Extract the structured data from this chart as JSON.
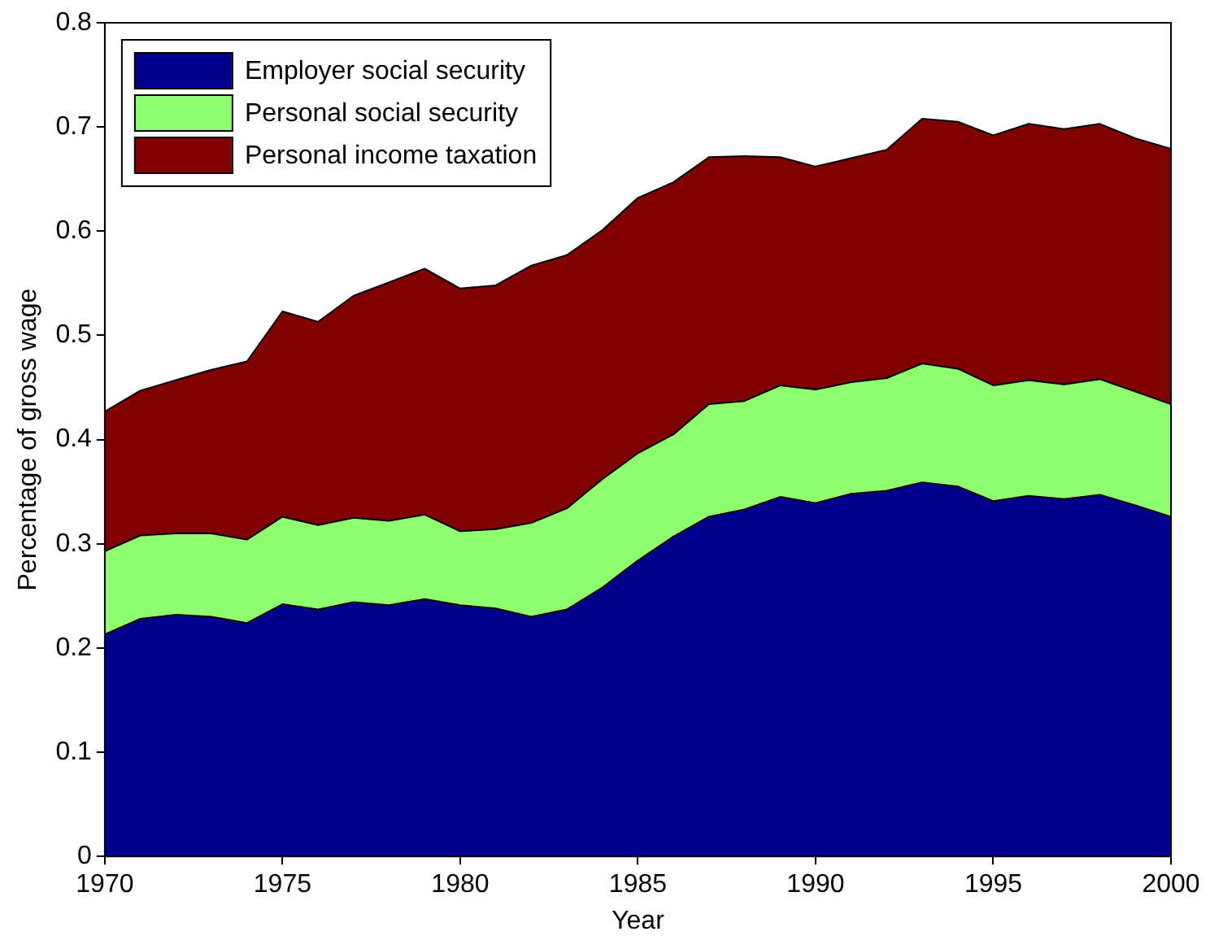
{
  "chart_data": {
    "type": "area",
    "stacked": true,
    "xlabel": "Year",
    "ylabel": "Percentage of gross wage",
    "x": [
      1970,
      1971,
      1972,
      1973,
      1974,
      1975,
      1976,
      1977,
      1978,
      1979,
      1980,
      1981,
      1982,
      1983,
      1984,
      1985,
      1986,
      1987,
      1988,
      1989,
      1990,
      1991,
      1992,
      1993,
      1994,
      1995,
      1996,
      1997,
      1998,
      1999,
      2000
    ],
    "xlim": [
      1970,
      2000
    ],
    "xticks": [
      1970,
      1975,
      1980,
      1985,
      1990,
      1995,
      2000
    ],
    "ylim": [
      0,
      0.8
    ],
    "yticks": [
      0,
      0.1,
      0.2,
      0.3,
      0.4,
      0.5,
      0.6,
      0.7,
      0.8
    ],
    "grid": false,
    "legend": "top left",
    "marker": "none",
    "series": [
      {
        "name": "Employer social security",
        "color": "#00008f",
        "values": [
          0.213,
          0.228,
          0.232,
          0.23,
          0.224,
          0.242,
          0.237,
          0.244,
          0.241,
          0.247,
          0.241,
          0.238,
          0.23,
          0.237,
          0.258,
          0.284,
          0.307,
          0.326,
          0.333,
          0.345,
          0.339,
          0.348,
          0.351,
          0.359,
          0.355,
          0.341,
          0.346,
          0.343,
          0.347,
          0.337,
          0.326
        ]
      },
      {
        "name": "Personal social security",
        "color": "#8fff70",
        "values": [
          0.08,
          0.08,
          0.078,
          0.08,
          0.08,
          0.084,
          0.081,
          0.081,
          0.081,
          0.081,
          0.071,
          0.076,
          0.09,
          0.097,
          0.104,
          0.103,
          0.098,
          0.108,
          0.104,
          0.107,
          0.109,
          0.107,
          0.108,
          0.114,
          0.113,
          0.111,
          0.111,
          0.11,
          0.111,
          0.109,
          0.108
        ]
      },
      {
        "name": "Personal income taxation",
        "color": "#800000",
        "values": [
          0.134,
          0.139,
          0.147,
          0.157,
          0.171,
          0.197,
          0.195,
          0.213,
          0.229,
          0.236,
          0.233,
          0.234,
          0.247,
          0.243,
          0.239,
          0.245,
          0.242,
          0.237,
          0.235,
          0.219,
          0.214,
          0.215,
          0.219,
          0.235,
          0.237,
          0.24,
          0.246,
          0.245,
          0.245,
          0.243,
          0.245
        ]
      }
    ]
  }
}
